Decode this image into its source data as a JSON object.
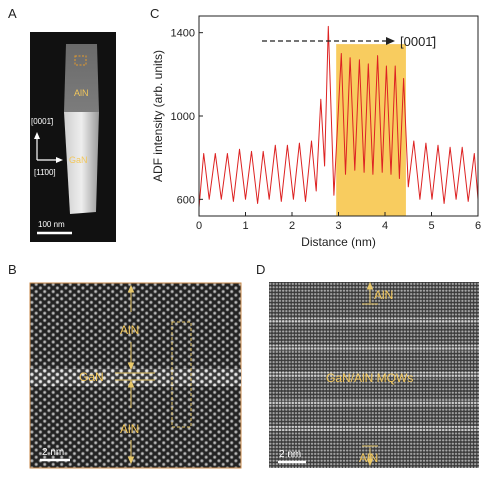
{
  "panels": {
    "a": {
      "label": "A",
      "aln": "AlN",
      "gan": "GaN",
      "dir_vertical": "[0001̄]",
      "dir_horizontal": "[11̄00]",
      "scale": "100 nm"
    },
    "b": {
      "label": "B",
      "aln_top": "AlN",
      "gan": "GaN",
      "aln_bottom": "AlN",
      "scale": "2 nm"
    },
    "c": {
      "label": "C",
      "direction": "[0001̄]"
    },
    "d": {
      "label": "D",
      "aln_top": "AlN",
      "mqw": "GaN/AlN MQWs",
      "aln_bottom": "AlN",
      "scale": "2 nm"
    }
  },
  "chart_data": {
    "type": "line",
    "title": "",
    "xlabel": "Distance (nm)",
    "ylabel": "ADF intensity (arb. units)",
    "xlim": [
      0,
      6
    ],
    "ylim": [
      520,
      1480
    ],
    "xticks": [
      0,
      1,
      2,
      3,
      4,
      5,
      6
    ],
    "yticks": [
      600,
      1000,
      1400
    ],
    "highlight_x": [
      2.95,
      4.45
    ],
    "series": [
      {
        "color": "#dd2222",
        "peaks": [
          [
            0.1,
            820
          ],
          [
            0.35,
            820
          ],
          [
            0.61,
            820
          ],
          [
            0.87,
            840
          ],
          [
            1.13,
            830
          ],
          [
            1.38,
            830
          ],
          [
            1.64,
            860
          ],
          [
            1.9,
            860
          ],
          [
            2.16,
            870
          ],
          [
            2.42,
            880
          ],
          [
            2.62,
            1080
          ],
          [
            2.78,
            1430
          ],
          [
            3.06,
            1300
          ],
          [
            3.25,
            1280
          ],
          [
            3.45,
            1270
          ],
          [
            3.64,
            1250
          ],
          [
            3.84,
            1290
          ],
          [
            4.03,
            1240
          ],
          [
            4.22,
            1240
          ],
          [
            4.4,
            1180
          ],
          [
            4.62,
            880
          ],
          [
            4.88,
            870
          ],
          [
            5.14,
            860
          ],
          [
            5.4,
            850
          ],
          [
            5.66,
            850
          ],
          [
            5.92,
            820
          ]
        ],
        "troughs": [
          [
            0.0,
            560
          ],
          [
            0.22,
            600
          ],
          [
            0.48,
            600
          ],
          [
            0.74,
            590
          ],
          [
            1.0,
            600
          ],
          [
            1.26,
            580
          ],
          [
            1.51,
            600
          ],
          [
            1.77,
            590
          ],
          [
            2.03,
            600
          ],
          [
            2.29,
            590
          ],
          [
            2.52,
            640
          ],
          [
            2.7,
            760
          ],
          [
            2.9,
            620
          ],
          [
            3.15,
            720
          ],
          [
            3.35,
            740
          ],
          [
            3.55,
            730
          ],
          [
            3.74,
            720
          ],
          [
            3.94,
            730
          ],
          [
            4.13,
            720
          ],
          [
            4.31,
            700
          ],
          [
            4.5,
            660
          ],
          [
            4.75,
            600
          ],
          [
            5.01,
            600
          ],
          [
            5.27,
            580
          ],
          [
            5.53,
            600
          ],
          [
            5.79,
            590
          ],
          [
            6.0,
            600
          ]
        ]
      }
    ]
  }
}
